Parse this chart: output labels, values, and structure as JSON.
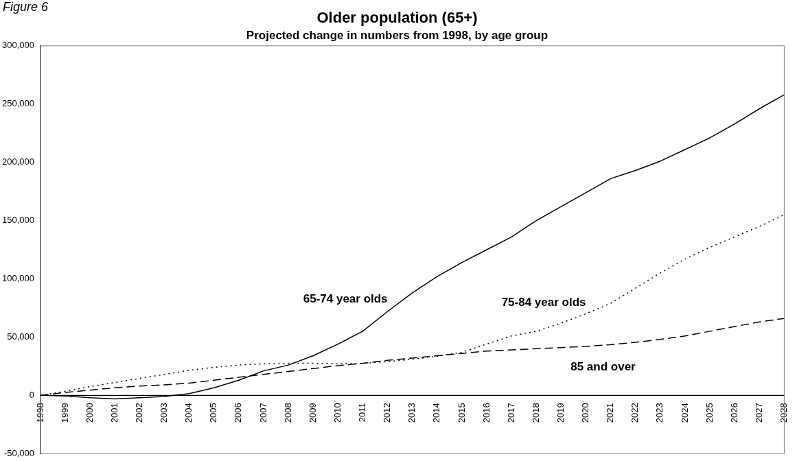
{
  "chart_data": {
    "type": "line",
    "title": "Older population (65+)",
    "subtitle": "Projected change in numbers from 1998, by age group",
    "annotations": [
      "Figure 6"
    ],
    "categories": [
      "1998",
      "1999",
      "2000",
      "2001",
      "2002",
      "2003",
      "2004",
      "2005",
      "2006",
      "2007",
      "2008",
      "2009",
      "2010",
      "2011",
      "2012",
      "2013",
      "2014",
      "2015",
      "2016",
      "2017",
      "2018",
      "2019",
      "2020",
      "2021",
      "2022",
      "2023",
      "2024",
      "2025",
      "2026",
      "2027",
      "2028"
    ],
    "series": [
      {
        "name": "65-74 year olds",
        "color": "#000000",
        "line_style": "solid",
        "values": [
          0,
          -500,
          -2000,
          -3000,
          -2000,
          -1000,
          1500,
          6500,
          13000,
          21000,
          26000,
          34000,
          44000,
          55000,
          72000,
          88000,
          102000,
          114000,
          125000,
          136000,
          150000,
          162000,
          174000,
          186000,
          193000,
          201000,
          211000,
          221000,
          233000,
          246000,
          258000
        ]
      },
      {
        "name": "75-84 year olds",
        "color": "#000000",
        "line_style": "dotted",
        "values": [
          0,
          3500,
          7500,
          11000,
          14500,
          18000,
          21500,
          24000,
          26000,
          27000,
          27500,
          27500,
          27000,
          27500,
          29000,
          31000,
          33500,
          37000,
          44000,
          51000,
          55000,
          62000,
          70000,
          79000,
          92000,
          105000,
          117000,
          127000,
          136000,
          145000,
          155000
        ]
      },
      {
        "name": "85 and over",
        "color": "#000000",
        "line_style": "dashed",
        "values": [
          0,
          2500,
          4500,
          6500,
          8000,
          9000,
          10500,
          13000,
          15500,
          18000,
          20500,
          23000,
          25500,
          27500,
          30000,
          32000,
          34000,
          36000,
          38000,
          39000,
          40000,
          41000,
          42000,
          43500,
          45500,
          48000,
          51000,
          55000,
          59000,
          63000,
          66000
        ]
      }
    ],
    "ylim": [
      -50000,
      300000
    ],
    "yticks": [
      {
        "value": -50000,
        "label": "-50,000"
      },
      0,
      {
        "value": 50000,
        "label": "50,000"
      },
      {
        "value": 100000,
        "label": "100,000"
      },
      {
        "value": 150000,
        "label": "150,000"
      },
      {
        "value": 200000,
        "label": "200,000"
      },
      {
        "value": 250000,
        "label": "250,000"
      },
      {
        "value": 300000,
        "label": "300,000"
      }
    ],
    "grid": false,
    "legend": false,
    "marker": "none"
  }
}
